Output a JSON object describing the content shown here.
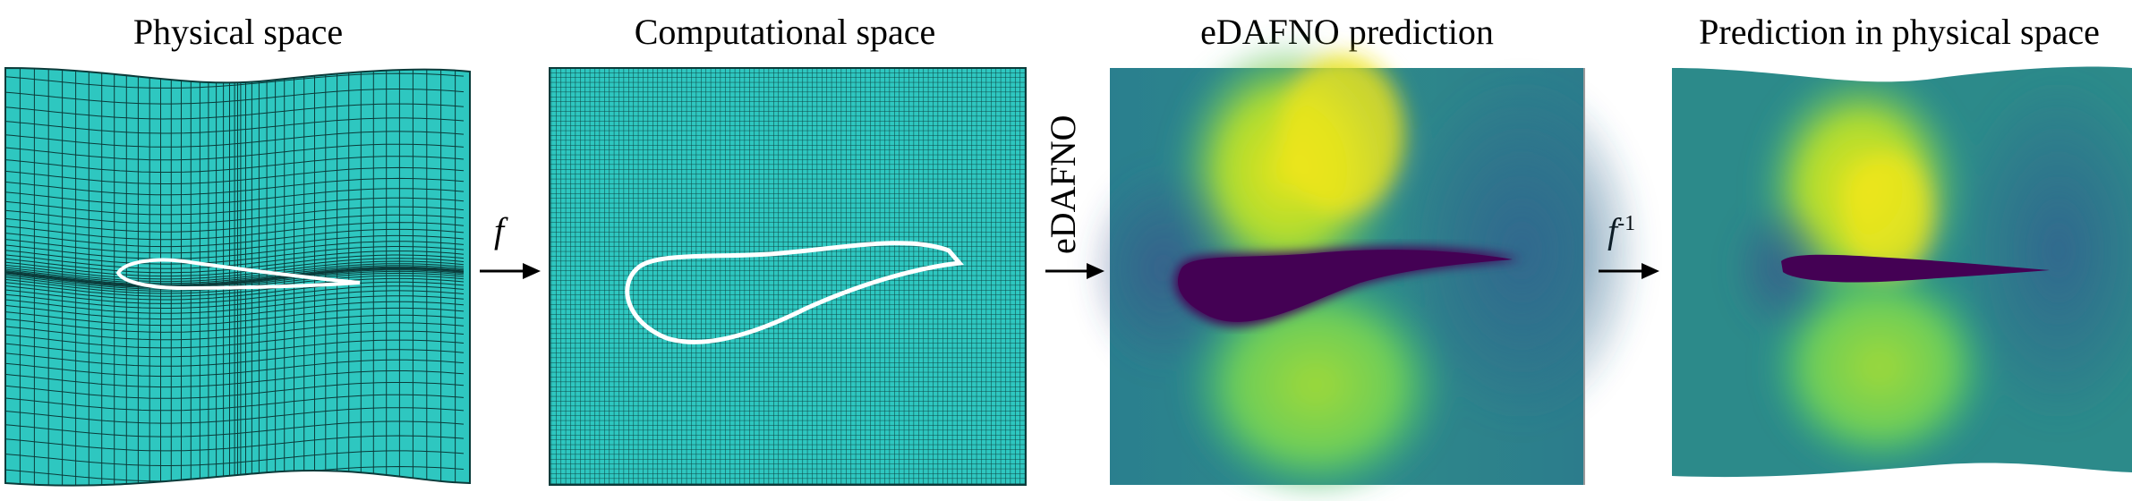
{
  "panels": [
    {
      "title": "Physical space"
    },
    {
      "title": "Computational space"
    },
    {
      "title": "eDAFNO prediction"
    },
    {
      "title": "Prediction in physical space"
    }
  ],
  "arrows": {
    "map": "f",
    "model": "eDAFNO",
    "inverse_base": "f",
    "inverse_sup": "-1"
  },
  "colors": {
    "mesh_fill": "#2ec7c0",
    "mesh_lines": "#0b3b3a",
    "field_low": "#440154",
    "field_mid": "#21918c",
    "field_high": "#fde725"
  }
}
